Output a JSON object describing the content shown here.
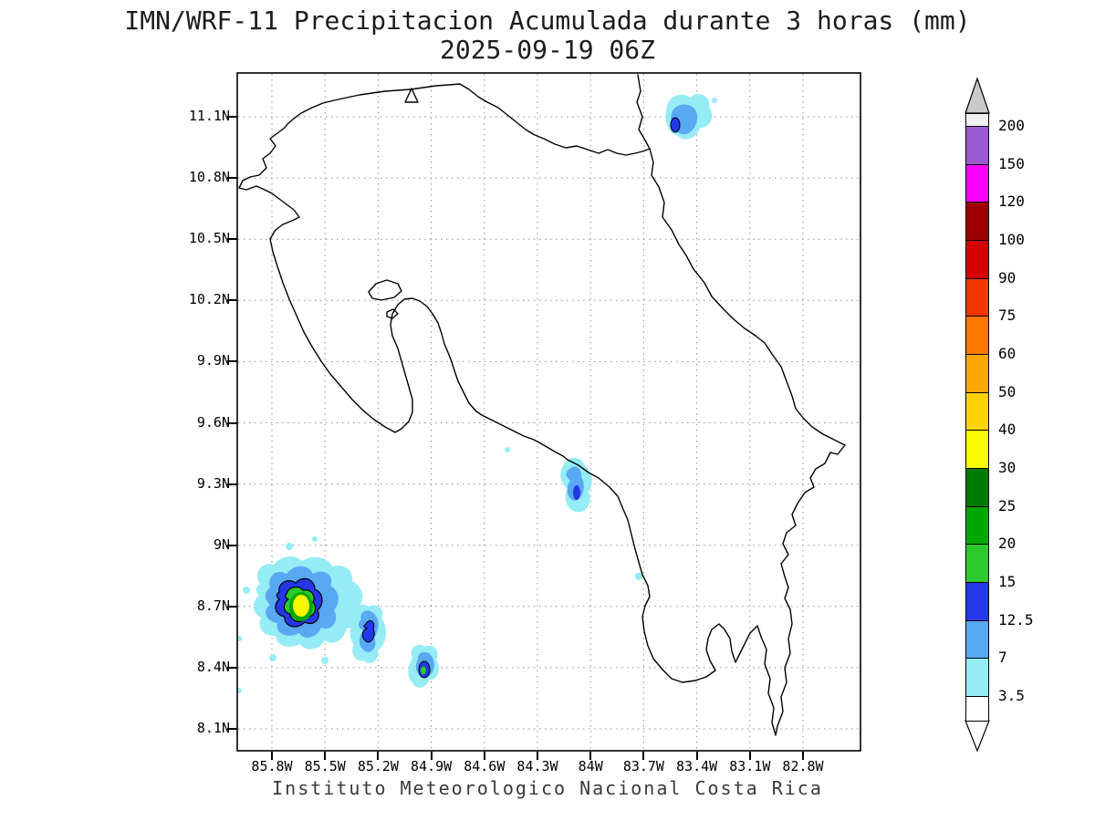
{
  "header": {
    "title_line1": "IMN/WRF-11 Precipitacion Acumulada durante 3 horas (mm)",
    "title_line2": "2025-09-19 06Z"
  },
  "footer": {
    "caption": "Instituto Meteorologico Nacional Costa Rica"
  },
  "map": {
    "lat_ticks": [
      "11.1N",
      "10.8N",
      "10.5N",
      "10.2N",
      "9.9N",
      "9.6N",
      "9.3N",
      "9N",
      "8.7N",
      "8.4N",
      "8.1N"
    ],
    "lon_ticks": [
      "85.8W",
      "85.5W",
      "85.2W",
      "84.9W",
      "84.6W",
      "84.3W",
      "84W",
      "83.7W",
      "83.4W",
      "83.1W",
      "82.8W"
    ],
    "region": "Costa Rica",
    "precipitation_cells": [
      {
        "location": "offshore Caribbean near 83.4W 11.05N",
        "peak_band_mm": "12.5-15"
      },
      {
        "location": "central Pacific coast near 84.05W 9.25N",
        "peak_band_mm": "12.5-15"
      },
      {
        "location": "offshore Pacific SW near 85.5W 8.65N",
        "peak_band_mm": "30-40"
      },
      {
        "location": "offshore Pacific near 85.15W 8.45N",
        "peak_band_mm": "12.5-15"
      },
      {
        "location": "offshore Pacific near 84.95W 8.4N",
        "peak_band_mm": "15-20"
      }
    ]
  },
  "palette": {
    "p3_5": "#95ECF5",
    "p7": "#58A8F2",
    "p12_5": "#2438E8",
    "p15": "#2DC92D",
    "p20": "#00A800",
    "p30": "#F8F800"
  },
  "colorbar": {
    "levels_top_to_bottom": [
      "200",
      "150",
      "120",
      "100",
      "90",
      "75",
      "60",
      "50",
      "40",
      "30",
      "25",
      "20",
      "15",
      "12.5",
      "7",
      "3.5"
    ],
    "colors_top_to_bottom": [
      "#F2F2F2",
      "#9B59D0",
      "#FA00FA",
      "#9E0000",
      "#D40000",
      "#F53500",
      "#FA7800",
      "#FCA800",
      "#FCD200",
      "#FAFA00",
      "#007A00",
      "#00A800",
      "#2DC92D",
      "#2438E8",
      "#58A8F2",
      "#95ECF5",
      "#FFFFFF"
    ],
    "arrow_top_color": "#C9C9C9",
    "arrow_bottom_color": "#FFFFFF"
  }
}
